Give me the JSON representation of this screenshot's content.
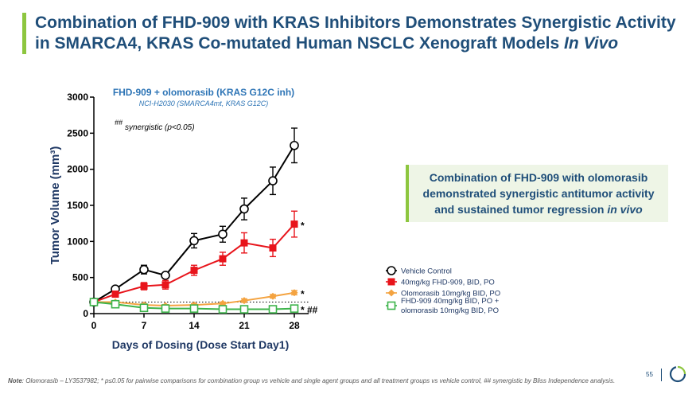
{
  "page": {
    "title_main": "Combination of FHD-909 with KRAS Inhibitors Demonstrates Synergistic Activity in SMARCA4, KRAS Co-mutated Human NSCLC Xenograft Models ",
    "title_italic": "In Vivo",
    "callout_main": "Combination of FHD-909 with olomorasib demonstrated synergistic antitumor activity and sustained tumor regression ",
    "callout_italic": "in vivo",
    "footnote_label": "Note",
    "footnote_text": ": Olomorasib – LY3537982; * p≤0.05 for pairwise comparisons for combination group vs vehicle and single agent groups and all treatment groups vs vehicle control, ## synergistic by Bliss Independence analysis.",
    "page_number": "55"
  },
  "colors": {
    "title": "#1f4e79",
    "accent": "#8dc63f",
    "vehicle": "#000000",
    "fhd909": "#e8141b",
    "olomorasib": "#f4a340",
    "combo": "#3cb34a"
  },
  "chart_data": {
    "type": "line",
    "title": "FHD-909 + olomorasib (KRAS G12C inh)",
    "subtitle": "NCI-H2030 (SMARCA4mt, KRAS G12C)",
    "annotation_prefix": "##",
    "annotation_text": "synergistic (p<0.05)",
    "xlabel": "Days of Dosing (Dose Start Day1)",
    "ylabel": "Tumor Volume (mm³)",
    "xlim": [
      0,
      30
    ],
    "ylim": [
      0,
      3000
    ],
    "xticks": [
      "0",
      "7",
      "14",
      "21",
      "28"
    ],
    "yticks": [
      "0",
      "500",
      "1000",
      "1500",
      "2000",
      "2500",
      "3000"
    ],
    "dotted_reference_y": 160,
    "series": [
      {
        "name": "Vehicle Control",
        "marker": "open-circle",
        "x": [
          0,
          3,
          7,
          10,
          14,
          18,
          21,
          25,
          28
        ],
        "y": [
          160,
          340,
          610,
          530,
          1010,
          1100,
          1450,
          1840,
          2330
        ],
        "err": [
          0,
          30,
          60,
          30,
          100,
          110,
          150,
          190,
          240
        ],
        "significance": ""
      },
      {
        "name": "40mg/kg FHD-909, BID, PO",
        "marker": "filled-square",
        "x": [
          0,
          3,
          7,
          10,
          14,
          18,
          21,
          25,
          28
        ],
        "y": [
          160,
          270,
          380,
          400,
          600,
          760,
          980,
          910,
          1240
        ],
        "err": [
          0,
          30,
          50,
          60,
          70,
          90,
          140,
          120,
          180
        ],
        "significance": "*"
      },
      {
        "name": "Olomorasib 10mg/kg BID, PO",
        "marker": "filled-diamond",
        "x": [
          0,
          3,
          7,
          10,
          14,
          18,
          21,
          25,
          28
        ],
        "y": [
          160,
          160,
          120,
          110,
          120,
          140,
          180,
          240,
          290
        ],
        "err": [
          0,
          20,
          20,
          15,
          20,
          20,
          25,
          25,
          30
        ],
        "significance": "*"
      },
      {
        "name": "FHD-909 40mg/kg BID, PO + olomorasib 10mg/kg BID, PO",
        "legend_line1": "FHD-909 40mg/kg BID, PO +",
        "legend_line2": "olomorasib 10mg/kg BID, PO",
        "marker": "open-square",
        "x": [
          0,
          3,
          7,
          10,
          14,
          18,
          21,
          25,
          28
        ],
        "y": [
          160,
          130,
          80,
          70,
          70,
          60,
          60,
          60,
          70
        ],
        "err": [
          0,
          20,
          15,
          10,
          10,
          10,
          10,
          10,
          10
        ],
        "significance": "* ##"
      }
    ]
  }
}
